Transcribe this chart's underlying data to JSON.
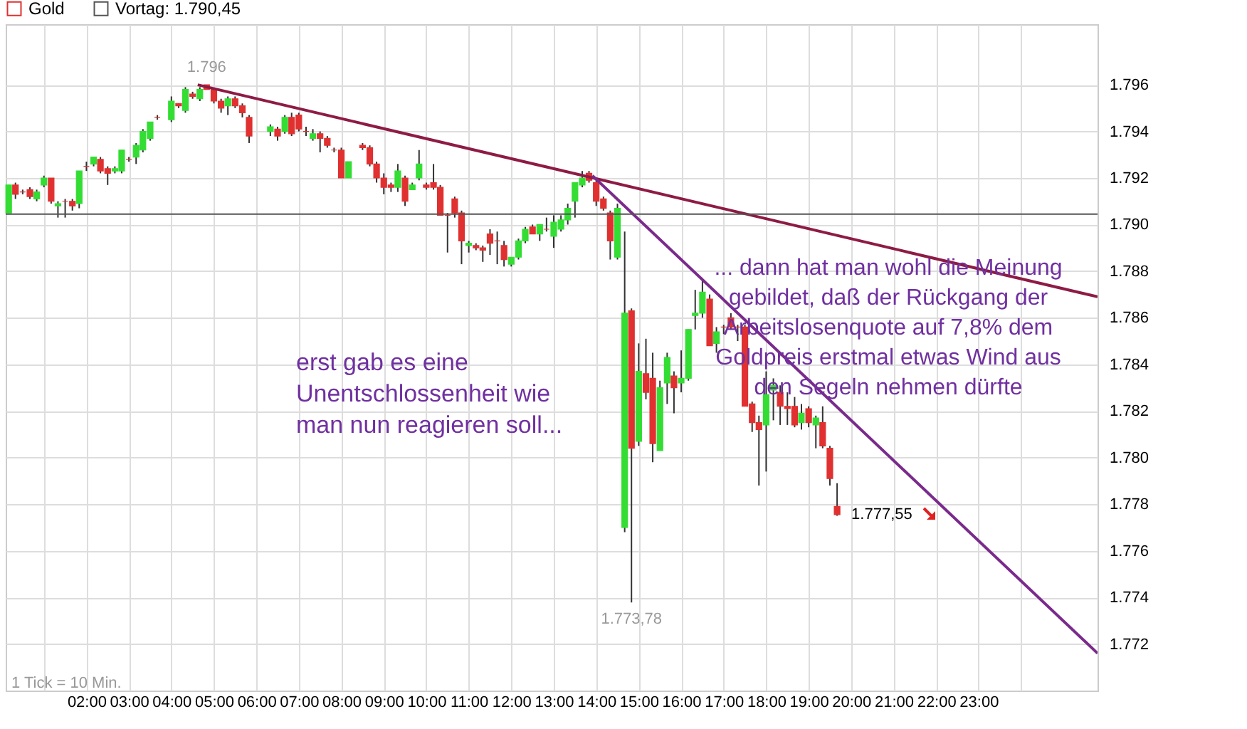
{
  "chart_data": {
    "type": "candlestick",
    "series": [
      {
        "name": "Gold",
        "type": "candlestick",
        "color": "#e03030",
        "colors": [
          "#33dd33",
          "#e03030",
          "#e03030",
          "#e03030",
          "#33dd33",
          "#33dd33",
          "#e03030",
          "#33dd33",
          "#e03030",
          "#e03030",
          "#33dd33",
          "#e03030",
          "#33dd33",
          "#e03030",
          "#e03030",
          "#33dd33",
          "#33dd33",
          "#e03030",
          "#33dd33",
          "#33dd33",
          "#33dd33",
          "#e03030",
          "#33dd33",
          "#e03030",
          "#33dd33",
          "#e03030",
          "#33dd33",
          "#e03030",
          "#e03030",
          "#e03030",
          "#33dd33",
          "#e03030",
          "#e03030",
          "#e03030",
          "#33dd33",
          "#e03030",
          "#33dd33",
          "#e03030",
          "#e03030",
          "#e03030",
          "#33dd33",
          "#e03030",
          "#e03030",
          "#e03030",
          "#e03030",
          "#33dd33",
          "#e03030",
          "#e03030",
          "#e03030",
          "#e03030",
          "#e03030",
          "#33dd33",
          "#e03030",
          "#33dd33",
          "#33dd33",
          "#e03030",
          "#e03030",
          "#e03030",
          "#e03030",
          "#e03030",
          "#e03030",
          "#33dd33",
          "#e03030",
          "#e03030",
          "#e03030",
          "#e03030",
          "#e03030",
          "#33dd33",
          "#33dd33",
          "#33dd33",
          "#e03030",
          "#33dd33",
          "#e03030",
          "#33dd33",
          "#33dd33",
          "#33dd33",
          "#33dd33",
          "#33dd33",
          "#e03030",
          "#e03030",
          "#e03030",
          "#e03030",
          "#33dd33",
          "#33dd33",
          "#e03030",
          "#33dd33",
          "#e03030",
          "#e03030",
          "#33dd33",
          "#33dd33",
          "#e03030",
          "#33dd33",
          "#33dd33",
          "#33dd33",
          "#33dd33",
          "#e03030",
          "#33dd33",
          "#e03030",
          "#e03030",
          "#e03030",
          "#e03030",
          "#e03030",
          "#e03030",
          "#33dd33",
          "#33dd33",
          "#e03030",
          "#e03030",
          "#e03030",
          "#33dd33",
          "#e03030",
          "#33dd33",
          "#e03030",
          "#e03030",
          "#e03030"
        ],
        "x": [
          0.17,
          0.33,
          0.5,
          0.67,
          0.83,
          1,
          1.17,
          1.33,
          1.5,
          1.67,
          1.83,
          2,
          2.17,
          2.33,
          2.5,
          2.67,
          2.83,
          3,
          3.17,
          3.33,
          3.5,
          3.67,
          4,
          4.17,
          4.33,
          4.5,
          4.67,
          4.83,
          5,
          5.17,
          5.33,
          5.5,
          5.67,
          5.83,
          6.33,
          6.5,
          6.67,
          6.83,
          7,
          7.17,
          7.33,
          7.5,
          7.67,
          7.83,
          8,
          8.17,
          8.5,
          8.67,
          8.83,
          9,
          9.17,
          9.33,
          9.5,
          9.67,
          9.83,
          10,
          10.17,
          10.33,
          10.5,
          10.67,
          10.83,
          11,
          11.17,
          11.33,
          11.5,
          11.67,
          11.83,
          12,
          12.17,
          12.33,
          12.5,
          12.67,
          12.83,
          13,
          13.17,
          13.33,
          13.5,
          13.67,
          13.83,
          14,
          14.17,
          14.33,
          14.5,
          14.67,
          14.83,
          15,
          15.17,
          15.33,
          15.5,
          15.67,
          15.83,
          16,
          16.17,
          16.33,
          16.5,
          16.67,
          16.83,
          17,
          17.17,
          17.33,
          17.5,
          17.67,
          17.83,
          18,
          18.17,
          18.33,
          18.5,
          18.67,
          18.83,
          19,
          19.17,
          19.33,
          19.5,
          19.67
        ],
        "ohlc": [
          [
            1790.5,
            1791.7,
            1790.5,
            1791.7
          ],
          [
            1791.7,
            1791.8,
            1791.1,
            1791.3
          ],
          [
            1791.4,
            1791.5,
            1791.3,
            1791.4
          ],
          [
            1791.5,
            1791.6,
            1791.1,
            1791.2
          ],
          [
            1791.1,
            1791.5,
            1791.0,
            1791.4
          ],
          [
            1791.7,
            1792.1,
            1791.6,
            1792.0
          ],
          [
            1792.0,
            1792.0,
            1790.9,
            1791.0
          ],
          [
            1790.8,
            1791.0,
            1790.3,
            1790.9
          ],
          [
            1791.0,
            1791.1,
            1790.3,
            1791.0
          ],
          [
            1791.0,
            1791.1,
            1790.6,
            1790.8
          ],
          [
            1790.9,
            1792.3,
            1790.7,
            1792.3
          ],
          [
            1792.5,
            1792.7,
            1792.3,
            1792.5
          ],
          [
            1792.6,
            1792.9,
            1792.5,
            1792.9
          ],
          [
            1792.8,
            1792.9,
            1792.2,
            1792.3
          ],
          [
            1792.4,
            1792.5,
            1791.7,
            1792.2
          ],
          [
            1792.3,
            1792.5,
            1792.2,
            1792.4
          ],
          [
            1792.3,
            1793.2,
            1792.2,
            1793.2
          ],
          [
            1792.8,
            1792.9,
            1792.7,
            1792.8
          ],
          [
            1792.9,
            1793.5,
            1792.6,
            1793.4
          ],
          [
            1793.2,
            1794.1,
            1793.1,
            1794.0
          ],
          [
            1793.7,
            1794.4,
            1793.6,
            1794.4
          ],
          [
            1794.6,
            1794.7,
            1794.5,
            1794.6
          ],
          [
            1794.5,
            1795.5,
            1794.4,
            1795.3
          ],
          [
            1795.2,
            1795.2,
            1795.0,
            1795.1
          ],
          [
            1794.9,
            1795.9,
            1794.8,
            1795.8
          ],
          [
            1795.6,
            1795.7,
            1795.4,
            1795.5
          ],
          [
            1795.4,
            1795.9,
            1795.3,
            1795.8
          ],
          [
            1796.0,
            1796.0,
            1795.8,
            1795.8
          ],
          [
            1795.8,
            1795.8,
            1795.2,
            1795.3
          ],
          [
            1795.3,
            1795.4,
            1794.8,
            1795.0
          ],
          [
            1795.1,
            1795.5,
            1794.7,
            1795.4
          ],
          [
            1795.4,
            1795.5,
            1795.0,
            1795.1
          ],
          [
            1795.1,
            1795.2,
            1794.6,
            1794.8
          ],
          [
            1794.6,
            1794.7,
            1793.5,
            1793.8
          ],
          [
            1794.0,
            1794.3,
            1793.8,
            1794.2
          ],
          [
            1794.1,
            1794.2,
            1793.6,
            1793.8
          ],
          [
            1794.0,
            1794.7,
            1793.9,
            1794.6
          ],
          [
            1794.6,
            1794.8,
            1793.8,
            1793.9
          ],
          [
            1794.7,
            1794.8,
            1794.0,
            1794.1
          ],
          [
            1794.0,
            1794.2,
            1793.8,
            1794.0
          ],
          [
            1793.7,
            1794.1,
            1793.6,
            1793.9
          ],
          [
            1793.9,
            1794.0,
            1793.1,
            1793.7
          ],
          [
            1793.7,
            1793.8,
            1793.3,
            1793.4
          ],
          [
            1793.2,
            1793.3,
            1793.1,
            1793.2
          ],
          [
            1793.2,
            1793.3,
            1792.0,
            1792.0
          ],
          [
            1792.0,
            1792.7,
            1792.0,
            1792.7
          ],
          [
            1793.4,
            1793.5,
            1793.2,
            1793.3
          ],
          [
            1793.3,
            1793.4,
            1792.5,
            1792.6
          ],
          [
            1792.6,
            1792.7,
            1791.8,
            1792.0
          ],
          [
            1792.0,
            1792.2,
            1791.3,
            1791.6
          ],
          [
            1791.7,
            1791.8,
            1791.4,
            1791.6
          ],
          [
            1791.6,
            1792.6,
            1791.4,
            1792.3
          ],
          [
            1792.0,
            1792.1,
            1790.8,
            1791.0
          ],
          [
            1791.5,
            1791.8,
            1791.5,
            1791.7
          ],
          [
            1792.0,
            1793.2,
            1791.9,
            1792.6
          ],
          [
            1791.7,
            1791.8,
            1791.5,
            1791.6
          ],
          [
            1791.8,
            1792.6,
            1791.5,
            1791.6
          ],
          [
            1791.6,
            1791.7,
            1790.4,
            1790.4
          ],
          [
            1790.4,
            1790.5,
            1788.8,
            1790.4
          ],
          [
            1791.1,
            1791.2,
            1790.3,
            1790.5
          ],
          [
            1790.5,
            1790.6,
            1788.3,
            1789.3
          ],
          [
            1789.1,
            1789.3,
            1788.8,
            1789.2
          ],
          [
            1789.1,
            1789.2,
            1788.9,
            1789.0
          ],
          [
            1789.0,
            1789.1,
            1788.4,
            1788.9
          ],
          [
            1789.6,
            1789.8,
            1788.7,
            1789.2
          ],
          [
            1789.3,
            1789.7,
            1788.3,
            1789.3
          ],
          [
            1789.1,
            1789.3,
            1788.2,
            1788.5
          ],
          [
            1788.3,
            1788.6,
            1788.2,
            1788.6
          ],
          [
            1788.6,
            1789.4,
            1788.5,
            1789.3
          ],
          [
            1789.3,
            1789.9,
            1789.2,
            1789.8
          ],
          [
            1789.9,
            1790.0,
            1789.6,
            1789.6
          ],
          [
            1789.6,
            1790.0,
            1789.3,
            1790.0
          ],
          [
            1789.8,
            1790.3,
            1789.7,
            1789.8
          ],
          [
            1789.5,
            1790.4,
            1789.0,
            1790.1
          ],
          [
            1789.8,
            1790.4,
            1789.7,
            1790.2
          ],
          [
            1790.2,
            1790.9,
            1790.0,
            1790.7
          ],
          [
            1791.0,
            1791.8,
            1790.3,
            1791.8
          ],
          [
            1791.7,
            1792.3,
            1791.6,
            1792.0
          ],
          [
            1792.2,
            1792.3,
            1791.8,
            1791.9
          ],
          [
            1791.8,
            1791.9,
            1790.8,
            1791.0
          ],
          [
            1791.1,
            1791.2,
            1790.6,
            1790.7
          ],
          [
            1790.5,
            1790.6,
            1788.5,
            1789.3
          ],
          [
            1788.6,
            1790.9,
            1788.5,
            1790.7
          ],
          [
            1777.0,
            1789.7,
            1776.8,
            1786.2
          ],
          [
            1786.3,
            1786.4,
            1773.78,
            1780.4
          ],
          [
            1780.7,
            1784.9,
            1780.5,
            1783.7
          ],
          [
            1783.6,
            1785.1,
            1782.5,
            1782.8
          ],
          [
            1783.4,
            1784.5,
            1779.8,
            1780.6
          ],
          [
            1780.3,
            1783.3,
            1780.3,
            1783.0
          ],
          [
            1783.2,
            1784.5,
            1782.3,
            1784.3
          ],
          [
            1783.5,
            1783.7,
            1781.9,
            1783.0
          ],
          [
            1783.2,
            1784.6,
            1782.8,
            1783.4
          ],
          [
            1783.4,
            1785.5,
            1783.3,
            1785.5
          ],
          [
            1786.1,
            1787.2,
            1785.5,
            1786.2
          ],
          [
            1786.2,
            1787.7,
            1786.0,
            1787.1
          ],
          [
            1786.8,
            1787.0,
            1784.8,
            1784.8
          ],
          [
            1784.9,
            1785.6,
            1784.5,
            1785.4
          ],
          [
            1785.6,
            1785.7,
            1785.3,
            1785.6
          ],
          [
            1786.0,
            1786.2,
            1785.5,
            1785.6
          ],
          [
            1785.6,
            1785.7,
            1785.0,
            1785.6
          ],
          [
            1785.6,
            1785.7,
            1782.2,
            1782.2
          ],
          [
            1782.3,
            1782.4,
            1781.1,
            1781.5
          ],
          [
            1781.5,
            1781.8,
            1778.8,
            1781.2
          ],
          [
            1781.4,
            1783.7,
            1779.4,
            1782.7
          ],
          [
            1782.9,
            1783.4,
            1781.6,
            1783.1
          ],
          [
            1782.8,
            1783.1,
            1781.4,
            1782.2
          ],
          [
            1782.2,
            1782.8,
            1781.4,
            1782.1
          ],
          [
            1782.2,
            1782.6,
            1781.3,
            1781.4
          ],
          [
            1781.5,
            1782.3,
            1781.2,
            1781.9
          ],
          [
            1782.1,
            1782.2,
            1781.3,
            1781.5
          ],
          [
            1781.4,
            1781.8,
            1780.4,
            1781.7
          ],
          [
            1781.5,
            1782.2,
            1780.4,
            1780.5
          ],
          [
            1780.4,
            1780.5,
            1778.8,
            1779.1
          ],
          [
            1777.9,
            1778.9,
            1777.5,
            1777.55
          ]
        ]
      },
      {
        "type": "line",
        "color": "#8e1b45",
        "x": [
          4.62,
          25.8
        ],
        "values": [
          1796.0,
          1786.9
        ]
      },
      {
        "type": "line",
        "color": "#7a2a8c",
        "x": [
          13.91,
          25.8
        ],
        "values": [
          1792.1,
          1771.6
        ]
      }
    ],
    "ref_lines": [
      {
        "axis": "y",
        "value": 1790.45,
        "label": "Vortag: 1.790,45",
        "color": "#555555"
      }
    ],
    "annotations": [
      "erst gab es eine\nUnentschlossenheit wie\nman nun reagieren soll...",
      "... dann hat man wohl die Meinung\ngebildet, daß der Rückgang der\nArbeitslosenquote auf 7,8% dem\nGoldpreis erstmal etwas Wind aus\nden Segeln nehmen dürfte",
      "1 Tick = 10 Min.",
      {
        "text": "1.796",
        "x": 4.83,
        "y": 1796.0
      },
      {
        "text": "1.773,78",
        "x": 14.83,
        "y": 1773.78
      },
      {
        "text": "1.777,55",
        "x": 19.67,
        "y": 1777.55
      }
    ],
    "xlim": [
      0.1,
      25.8
    ],
    "xticks": [
      {
        "value": 1,
        "label": null
      },
      {
        "value": 2,
        "label": "02:00"
      },
      {
        "value": 3,
        "label": "03:00"
      },
      {
        "value": 4,
        "label": "04:00"
      },
      {
        "value": 5,
        "label": "05:00"
      },
      {
        "value": 6,
        "label": "06:00"
      },
      {
        "value": 7,
        "label": "07:00"
      },
      {
        "value": 8,
        "label": "08:00"
      },
      {
        "value": 9,
        "label": "09:00"
      },
      {
        "value": 10,
        "label": "10:00"
      },
      {
        "value": 11,
        "label": "11:00"
      },
      {
        "value": 12,
        "label": "12:00"
      },
      {
        "value": 13,
        "label": "13:00"
      },
      {
        "value": 14,
        "label": "14:00"
      },
      {
        "value": 15,
        "label": "15:00"
      },
      {
        "value": 16,
        "label": "16:00"
      },
      {
        "value": 17,
        "label": "17:00"
      },
      {
        "value": 18,
        "label": "18:00"
      },
      {
        "value": 19,
        "label": "19:00"
      },
      {
        "value": 20,
        "label": "20:00"
      },
      {
        "value": 21,
        "label": "21:00"
      },
      {
        "value": 22,
        "label": "22:00"
      },
      {
        "value": 23,
        "label": "23:00"
      },
      {
        "value": 24,
        "label": null
      }
    ],
    "ylim": [
      1770.0,
      1798.6
    ],
    "yticks": [
      {
        "value": 1772,
        "label": "1.772"
      },
      {
        "value": 1774,
        "label": "1.774"
      },
      {
        "value": 1776,
        "label": "1.776"
      },
      {
        "value": 1778,
        "label": "1.778"
      },
      {
        "value": 1780,
        "label": "1.780"
      },
      {
        "value": 1782,
        "label": "1.782"
      },
      {
        "value": 1784,
        "label": "1.784"
      },
      {
        "value": 1786,
        "label": "1.786"
      },
      {
        "value": 1788,
        "label": "1.788"
      },
      {
        "value": 1790,
        "label": "1.790"
      },
      {
        "value": 1792,
        "label": "1.792"
      },
      {
        "value": 1794,
        "label": "1.794"
      },
      {
        "value": 1796,
        "label": "1.796"
      }
    ],
    "grid": true,
    "legend": "top left"
  }
}
